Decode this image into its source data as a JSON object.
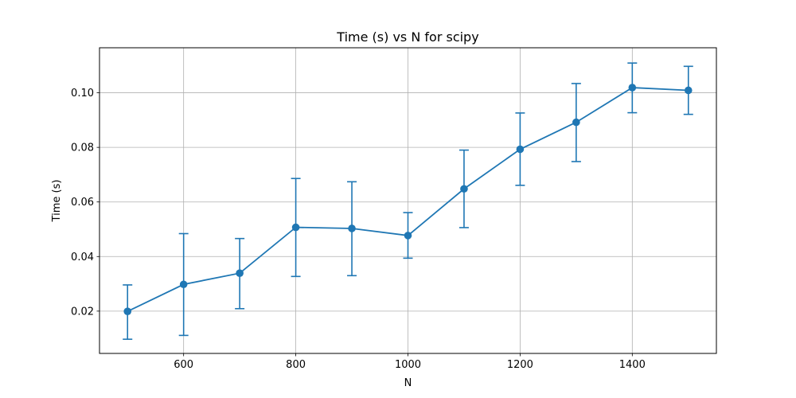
{
  "chart_data": {
    "type": "line",
    "title": "Time (s) vs N for scipy",
    "xlabel": "N",
    "ylabel": "Time (s)",
    "grid": true,
    "xlim": [
      450,
      1550
    ],
    "ylim": [
      0.0045,
      0.1165
    ],
    "x_ticks": [
      "600",
      "800",
      "1000",
      "1200",
      "1400"
    ],
    "y_ticks": [
      "0.02",
      "0.04",
      "0.06",
      "0.08",
      "0.10"
    ],
    "series": [
      {
        "x": [
          500,
          600,
          700,
          800,
          900,
          1000,
          1100,
          1200,
          1300,
          1400,
          1500
        ],
        "y": [
          0.0199,
          0.0298,
          0.0339,
          0.0507,
          0.0503,
          0.0477,
          0.0648,
          0.0793,
          0.0892,
          0.1019,
          0.1009
        ],
        "yerr_low": [
          0.0097,
          0.0111,
          0.0209,
          0.0327,
          0.033,
          0.0394,
          0.0506,
          0.0661,
          0.0748,
          0.0927,
          0.0921
        ],
        "yerr_high": [
          0.0296,
          0.0484,
          0.0466,
          0.0686,
          0.0674,
          0.0561,
          0.079,
          0.0926,
          0.1034,
          0.1109,
          0.1097
        ],
        "color": "#1f77b4",
        "marker": "circle"
      }
    ]
  }
}
